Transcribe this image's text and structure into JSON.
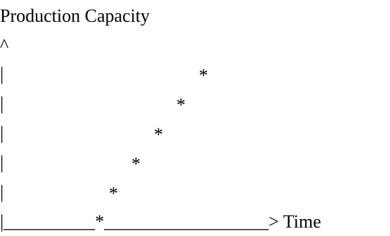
{
  "chart_data": {
    "type": "scatter",
    "title": "Production Capacity",
    "ylabel": "^",
    "xlabel": "> Time",
    "axis_char": "|",
    "baseline_char": "_",
    "point_char": "*",
    "points": [
      {
        "x": 0,
        "y": 0
      },
      {
        "x": 1,
        "y": 1
      },
      {
        "x": 2,
        "y": 2
      },
      {
        "x": 3,
        "y": 3
      },
      {
        "x": 4,
        "y": 4
      },
      {
        "x": 5,
        "y": 5
      }
    ]
  }
}
